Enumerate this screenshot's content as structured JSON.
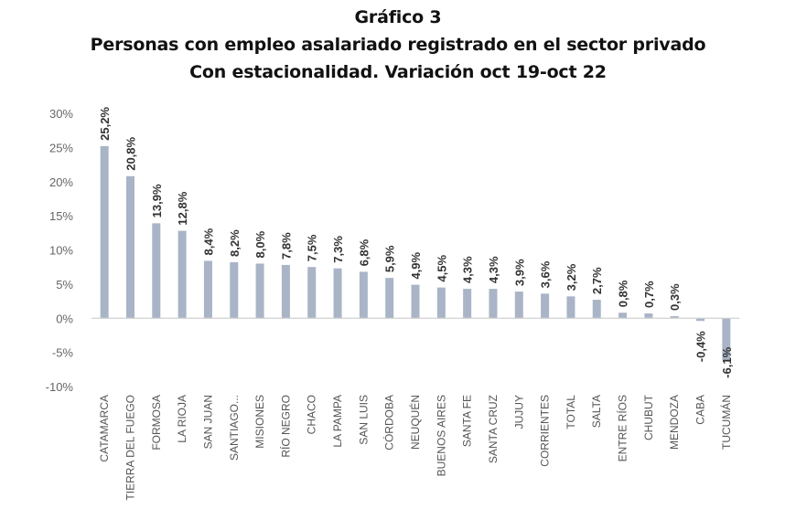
{
  "chart_data": {
    "type": "bar",
    "title": "Gráfico 3",
    "subtitle": [
      "Personas con empleo asalariado registrado en el sector privado",
      "Con estacionalidad. Variación oct 19-oct 22"
    ],
    "xlabel": "",
    "ylabel": "",
    "ylim": [
      -10,
      30
    ],
    "yticks": [
      30,
      25,
      20,
      15,
      10,
      5,
      0,
      -5,
      -10
    ],
    "ytick_labels": [
      "30%",
      "25%",
      "20%",
      "15%",
      "10%",
      "5%",
      "0%",
      "-5%",
      "-10%"
    ],
    "grid": false,
    "bar_color": "#a9b4c6",
    "categories": [
      "CATAMARCA",
      "TIERRA DEL FUEGO",
      "FORMOSA",
      "LA RIOJA",
      "SAN JUAN",
      "SANTIAGO...",
      "MISIONES",
      "RÍO NEGRO",
      "CHACO",
      "LA PAMPA",
      "SAN LUIS",
      "CÓRDOBA",
      "NEUQUÉN",
      "BUENOS AIRES",
      "SANTA FE",
      "SANTA CRUZ",
      "JUJUY",
      "CORRIENTES",
      "TOTAL",
      "SALTA",
      "ENTRE RÍOS",
      "CHUBUT",
      "MENDOZA",
      "CABA",
      "TUCUMÁN"
    ],
    "values": [
      25.2,
      20.8,
      13.9,
      12.8,
      8.4,
      8.2,
      8.0,
      7.8,
      7.5,
      7.3,
      6.8,
      5.9,
      4.9,
      4.5,
      4.3,
      4.3,
      3.9,
      3.6,
      3.2,
      2.7,
      0.8,
      0.7,
      0.3,
      -0.4,
      -6.1
    ],
    "data_labels": [
      "25,2%",
      "20,8%",
      "13,9%",
      "12,8%",
      "8,4%",
      "8,2%",
      "8,0%",
      "7,8%",
      "7,5%",
      "7,3%",
      "6,8%",
      "5,9%",
      "4,9%",
      "4,5%",
      "4,3%",
      "4,3%",
      "3,9%",
      "3,6%",
      "3,2%",
      "2,7%",
      "0,8%",
      "0,7%",
      "0,3%",
      "-0,4%",
      "-6,1%"
    ]
  }
}
